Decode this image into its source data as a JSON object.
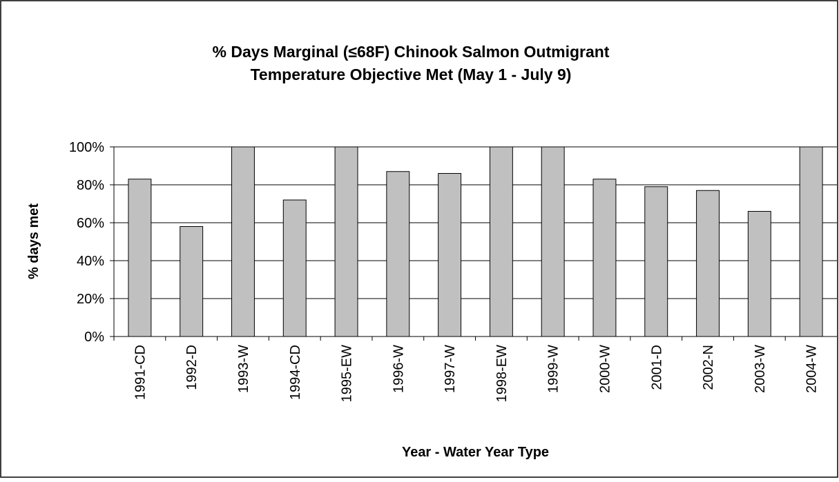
{
  "chart_data": {
    "type": "bar",
    "title": [
      "% Days Marginal (≤68F) Chinook Salmon Outmigrant",
      "Temperature Objective Met (May 1 - July 9)"
    ],
    "x_label": "Year - Water Year Type",
    "y_label": "% days met",
    "categories": [
      "1991-CD",
      "1992-D",
      "1993-W",
      "1994-CD",
      "1995-EW",
      "1996-W",
      "1997-W",
      "1998-EW",
      "1999-W",
      "2000-W",
      "2001-D",
      "2002-N",
      "2003-W",
      "2004-W"
    ],
    "values": [
      83,
      58,
      100,
      72,
      100,
      87,
      86,
      100,
      100,
      83,
      79,
      77,
      66,
      100
    ],
    "color": "#c0c0c0",
    "ylim": [
      0,
      100
    ],
    "yticks": [
      {
        "value": 0,
        "label": "0%"
      },
      {
        "value": 20,
        "label": "20%"
      },
      {
        "value": 40,
        "label": "40%"
      },
      {
        "value": 60,
        "label": "60%"
      },
      {
        "value": 80,
        "label": "80%"
      },
      {
        "value": 100,
        "label": "100%"
      }
    ],
    "grid": true
  }
}
